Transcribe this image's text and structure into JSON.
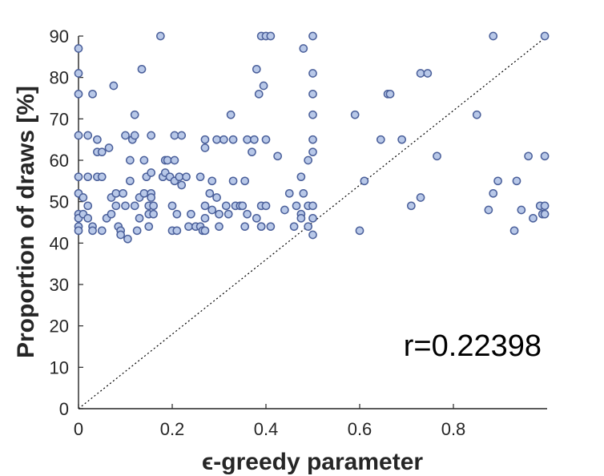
{
  "chart_data": {
    "type": "scatter",
    "xlabel": "ϵ-greedy parameter",
    "ylabel": "Proportion of draws [%]",
    "xlim": [
      0,
      1
    ],
    "ylim": [
      0,
      90
    ],
    "x_ticks": [
      "0",
      "0.2",
      "0.4",
      "0.6",
      "0.8"
    ],
    "y_ticks": [
      "0",
      "10",
      "20",
      "30",
      "40",
      "50",
      "60",
      "70",
      "80",
      "90"
    ],
    "annotation": "r=0.22398",
    "grid": false,
    "marker_fill": "#b8c8e8",
    "marker_edge": "#4a5f9a",
    "reference_line": {
      "style": "dotted",
      "color": "#000000",
      "from": [
        0,
        0
      ],
      "to": [
        1,
        90
      ]
    },
    "points": [
      [
        0.0,
        87
      ],
      [
        0.0,
        81
      ],
      [
        0.0,
        76
      ],
      [
        0.0,
        66
      ],
      [
        0.0,
        56
      ],
      [
        0.0,
        52
      ],
      [
        0.0,
        47
      ],
      [
        0.0,
        46
      ],
      [
        0.0,
        44
      ],
      [
        0.0,
        43
      ],
      [
        0.01,
        51
      ],
      [
        0.01,
        47
      ],
      [
        0.02,
        66
      ],
      [
        0.02,
        56
      ],
      [
        0.02,
        49
      ],
      [
        0.02,
        46
      ],
      [
        0.03,
        76
      ],
      [
        0.03,
        44
      ],
      [
        0.03,
        43
      ],
      [
        0.04,
        65
      ],
      [
        0.04,
        62
      ],
      [
        0.04,
        56
      ],
      [
        0.05,
        62
      ],
      [
        0.05,
        56
      ],
      [
        0.05,
        43
      ],
      [
        0.06,
        46
      ],
      [
        0.065,
        63
      ],
      [
        0.07,
        51
      ],
      [
        0.07,
        47
      ],
      [
        0.075,
        78
      ],
      [
        0.08,
        52
      ],
      [
        0.08,
        49
      ],
      [
        0.085,
        44
      ],
      [
        0.09,
        43
      ],
      [
        0.09,
        42
      ],
      [
        0.095,
        52
      ],
      [
        0.1,
        49
      ],
      [
        0.1,
        66
      ],
      [
        0.105,
        41
      ],
      [
        0.11,
        55
      ],
      [
        0.11,
        60
      ],
      [
        0.115,
        65
      ],
      [
        0.12,
        71
      ],
      [
        0.12,
        66
      ],
      [
        0.12,
        49
      ],
      [
        0.125,
        43
      ],
      [
        0.13,
        51
      ],
      [
        0.13,
        46
      ],
      [
        0.135,
        82
      ],
      [
        0.14,
        60
      ],
      [
        0.14,
        52
      ],
      [
        0.145,
        56
      ],
      [
        0.15,
        49
      ],
      [
        0.15,
        47
      ],
      [
        0.15,
        44
      ],
      [
        0.155,
        66
      ],
      [
        0.155,
        57
      ],
      [
        0.155,
        52
      ],
      [
        0.155,
        51
      ],
      [
        0.16,
        49
      ],
      [
        0.16,
        47
      ],
      [
        0.175,
        90
      ],
      [
        0.18,
        56
      ],
      [
        0.18,
        56
      ],
      [
        0.185,
        60
      ],
      [
        0.185,
        57
      ],
      [
        0.19,
        60
      ],
      [
        0.195,
        56
      ],
      [
        0.2,
        49
      ],
      [
        0.2,
        43
      ],
      [
        0.205,
        66
      ],
      [
        0.205,
        60
      ],
      [
        0.205,
        55
      ],
      [
        0.21,
        47
      ],
      [
        0.21,
        43
      ],
      [
        0.215,
        56
      ],
      [
        0.22,
        66
      ],
      [
        0.22,
        54
      ],
      [
        0.23,
        56
      ],
      [
        0.235,
        44
      ],
      [
        0.24,
        47
      ],
      [
        0.25,
        44
      ],
      [
        0.26,
        56
      ],
      [
        0.26,
        44
      ],
      [
        0.265,
        43
      ],
      [
        0.27,
        65
      ],
      [
        0.27,
        63
      ],
      [
        0.27,
        49
      ],
      [
        0.27,
        46
      ],
      [
        0.27,
        43
      ],
      [
        0.28,
        52
      ],
      [
        0.285,
        55
      ],
      [
        0.285,
        48
      ],
      [
        0.295,
        65
      ],
      [
        0.295,
        51
      ],
      [
        0.3,
        47
      ],
      [
        0.3,
        44
      ],
      [
        0.31,
        65
      ],
      [
        0.315,
        49
      ],
      [
        0.32,
        47
      ],
      [
        0.325,
        71
      ],
      [
        0.33,
        65
      ],
      [
        0.33,
        55
      ],
      [
        0.335,
        49
      ],
      [
        0.345,
        49
      ],
      [
        0.35,
        49
      ],
      [
        0.355,
        44
      ],
      [
        0.355,
        55
      ],
      [
        0.36,
        65
      ],
      [
        0.36,
        47
      ],
      [
        0.37,
        62
      ],
      [
        0.375,
        65
      ],
      [
        0.38,
        82
      ],
      [
        0.38,
        46
      ],
      [
        0.385,
        76
      ],
      [
        0.39,
        49
      ],
      [
        0.39,
        44
      ],
      [
        0.39,
        44
      ],
      [
        0.39,
        90
      ],
      [
        0.395,
        78
      ],
      [
        0.4,
        90
      ],
      [
        0.4,
        65
      ],
      [
        0.4,
        49
      ],
      [
        0.41,
        90
      ],
      [
        0.41,
        44
      ],
      [
        0.425,
        61
      ],
      [
        0.44,
        48
      ],
      [
        0.45,
        52
      ],
      [
        0.46,
        44
      ],
      [
        0.465,
        49
      ],
      [
        0.475,
        56
      ],
      [
        0.475,
        47
      ],
      [
        0.475,
        46
      ],
      [
        0.48,
        87
      ],
      [
        0.48,
        52
      ],
      [
        0.49,
        60
      ],
      [
        0.49,
        49
      ],
      [
        0.49,
        44
      ],
      [
        0.5,
        90
      ],
      [
        0.5,
        81
      ],
      [
        0.5,
        76
      ],
      [
        0.5,
        71
      ],
      [
        0.5,
        65
      ],
      [
        0.5,
        62
      ],
      [
        0.5,
        49
      ],
      [
        0.5,
        46
      ],
      [
        0.5,
        42
      ],
      [
        0.59,
        71
      ],
      [
        0.6,
        43
      ],
      [
        0.61,
        55
      ],
      [
        0.645,
        65
      ],
      [
        0.66,
        76
      ],
      [
        0.665,
        76
      ],
      [
        0.69,
        65
      ],
      [
        0.71,
        49
      ],
      [
        0.73,
        51
      ],
      [
        0.73,
        81
      ],
      [
        0.745,
        81
      ],
      [
        0.765,
        61
      ],
      [
        0.85,
        71
      ],
      [
        0.875,
        48
      ],
      [
        0.885,
        52
      ],
      [
        0.885,
        90
      ],
      [
        0.895,
        55
      ],
      [
        0.93,
        43
      ],
      [
        0.935,
        55
      ],
      [
        0.945,
        48
      ],
      [
        0.96,
        61
      ],
      [
        0.97,
        46
      ],
      [
        0.985,
        49
      ],
      [
        0.99,
        47
      ],
      [
        0.995,
        90
      ],
      [
        0.995,
        61
      ],
      [
        0.995,
        49
      ],
      [
        0.995,
        47
      ]
    ]
  }
}
